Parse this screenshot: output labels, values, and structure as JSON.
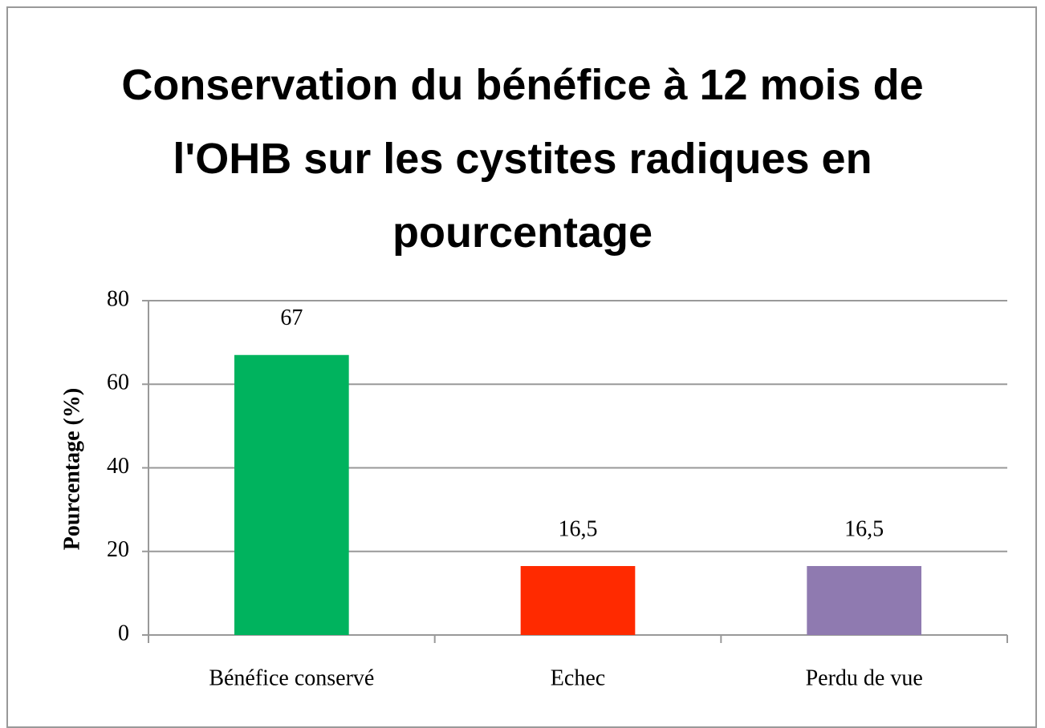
{
  "chart_data": {
    "type": "bar",
    "title": "Conservation du bénéfice à 12 mois de l'OHB sur les cystites radiques en pourcentage",
    "y_label": "Pourcentage (%)",
    "categories": [
      "Bénéfice conservé",
      "Echec",
      "Perdu de vue"
    ],
    "values": [
      67,
      16.5,
      16.5
    ],
    "value_labels": [
      "67",
      "16,5",
      "16,5"
    ],
    "colors": [
      "#00b35e",
      "#ff2a00",
      "#8f7ab0"
    ],
    "ylim": [
      0,
      80
    ],
    "yticks": [
      0,
      20,
      40,
      60,
      80
    ],
    "grid": true
  }
}
